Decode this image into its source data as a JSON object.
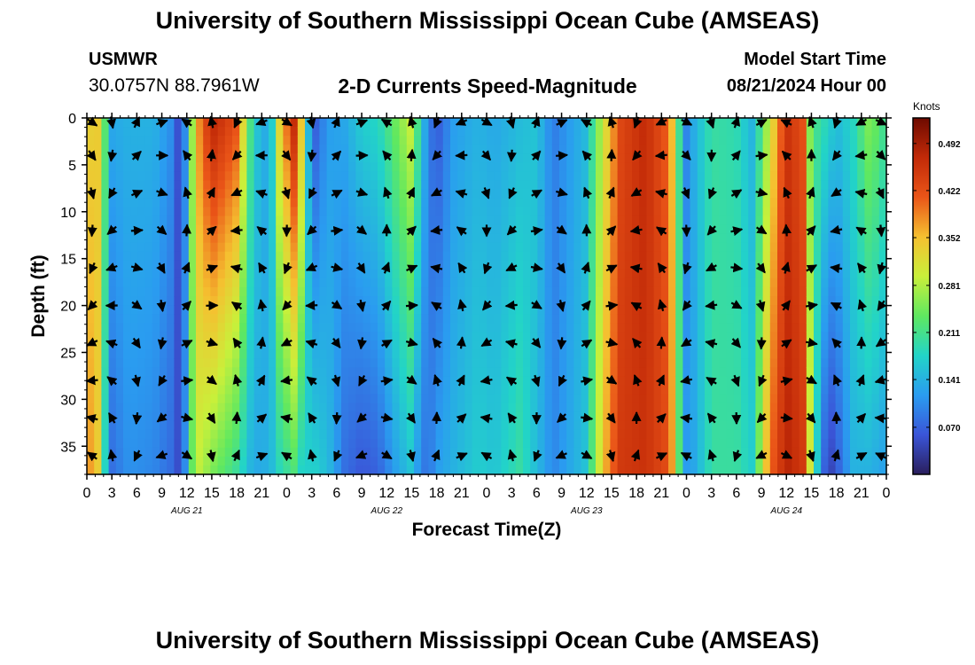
{
  "header": {
    "title": "University of Southern Mississippi Ocean Cube (AMSEAS)",
    "station": "USMWR",
    "latlon": "30.0757N  88.7961W",
    "subtitle": "2-D Currents Speed-Magnitude",
    "start_label": "Model Start Time",
    "start_value": "08/21/2024 Hour 00"
  },
  "footer": {
    "title": "University of Southern Mississippi Ocean Cube (AMSEAS)"
  },
  "chart_data": {
    "type": "heatmap",
    "title": "2-D Currents Speed-Magnitude",
    "xlabel": "Forecast Time(Z)",
    "ylabel": "Depth (ft)",
    "x_range_hours": [
      0,
      96
    ],
    "ylim": [
      0,
      38
    ],
    "y_ticks": [
      0,
      5,
      10,
      15,
      20,
      25,
      30,
      35
    ],
    "x_tick_labels": [
      "0",
      "3",
      "6",
      "9",
      "12",
      "15",
      "18",
      "21",
      "0",
      "3",
      "6",
      "9",
      "12",
      "15",
      "18",
      "21",
      "0",
      "3",
      "6",
      "9",
      "12",
      "15",
      "18",
      "21",
      "0",
      "3",
      "6",
      "9",
      "12",
      "15",
      "18",
      "21",
      "0"
    ],
    "date_labels": [
      {
        "hour": 12,
        "label": "AUG 21"
      },
      {
        "hour": 36,
        "label": "AUG 22"
      },
      {
        "hour": 60,
        "label": "AUG 23"
      },
      {
        "hour": 84,
        "label": "AUG 24"
      }
    ],
    "colorbar": {
      "units": "Knots",
      "min": 0.0,
      "max": 0.53,
      "ticks": [
        0.07,
        0.141,
        0.211,
        0.281,
        0.352,
        0.422,
        0.492
      ],
      "tick_labels": [
        "0.070",
        "0.141",
        "0.211",
        "0.281",
        "0.352",
        "0.422",
        "0.492"
      ],
      "colors": [
        "#2a1e5c",
        "#3a55d8",
        "#2a9cf0",
        "#22d4c8",
        "#5fe860",
        "#c9f03a",
        "#f5c030",
        "#ea5518",
        "#c22a08",
        "#6e0a00"
      ]
    },
    "vector_depths_ft": [
      0,
      4,
      8,
      12,
      16,
      20,
      24,
      28,
      32,
      36
    ],
    "speed_profile_knots": [
      {
        "hour": 0,
        "surface": 0.3,
        "bottom": 0.35
      },
      {
        "hour": 1,
        "surface": 0.38,
        "bottom": 0.4
      },
      {
        "hour": 2,
        "surface": 0.25,
        "bottom": 0.2
      },
      {
        "hour": 3,
        "surface": 0.13,
        "bottom": 0.08
      },
      {
        "hour": 5,
        "surface": 0.14,
        "bottom": 0.11
      },
      {
        "hour": 8,
        "surface": 0.14,
        "bottom": 0.1
      },
      {
        "hour": 10,
        "surface": 0.11,
        "bottom": 0.08
      },
      {
        "hour": 11,
        "surface": 0.05,
        "bottom": 0.05
      },
      {
        "hour": 12,
        "surface": 0.12,
        "bottom": 0.12
      },
      {
        "hour": 13,
        "surface": 0.35,
        "bottom": 0.3
      },
      {
        "hour": 15,
        "surface": 0.48,
        "bottom": 0.25
      },
      {
        "hour": 18,
        "surface": 0.42,
        "bottom": 0.2
      },
      {
        "hour": 20,
        "surface": 0.17,
        "bottom": 0.13
      },
      {
        "hour": 22,
        "surface": 0.12,
        "bottom": 0.14
      },
      {
        "hour": 23,
        "surface": 0.32,
        "bottom": 0.18
      },
      {
        "hour": 25,
        "surface": 0.48,
        "bottom": 0.22
      },
      {
        "hour": 26,
        "surface": 0.3,
        "bottom": 0.16
      },
      {
        "hour": 27,
        "surface": 0.05,
        "bottom": 0.18
      },
      {
        "hour": 29,
        "surface": 0.12,
        "bottom": 0.15
      },
      {
        "hour": 31,
        "surface": 0.13,
        "bottom": 0.08
      },
      {
        "hour": 33,
        "surface": 0.17,
        "bottom": 0.06
      },
      {
        "hour": 35,
        "surface": 0.18,
        "bottom": 0.07
      },
      {
        "hour": 37,
        "surface": 0.24,
        "bottom": 0.12
      },
      {
        "hour": 39,
        "surface": 0.3,
        "bottom": 0.16
      },
      {
        "hour": 40,
        "surface": 0.18,
        "bottom": 0.1
      },
      {
        "hour": 41,
        "surface": 0.1,
        "bottom": 0.08
      },
      {
        "hour": 42,
        "surface": 0.06,
        "bottom": 0.12
      },
      {
        "hour": 44,
        "surface": 0.12,
        "bottom": 0.14
      },
      {
        "hour": 47,
        "surface": 0.14,
        "bottom": 0.17
      },
      {
        "hour": 49,
        "surface": 0.13,
        "bottom": 0.16
      },
      {
        "hour": 52,
        "surface": 0.15,
        "bottom": 0.2
      },
      {
        "hour": 54,
        "surface": 0.16,
        "bottom": 0.15
      },
      {
        "hour": 56,
        "surface": 0.09,
        "bottom": 0.1
      },
      {
        "hour": 58,
        "surface": 0.12,
        "bottom": 0.13
      },
      {
        "hour": 60,
        "surface": 0.15,
        "bottom": 0.16
      },
      {
        "hour": 62,
        "surface": 0.3,
        "bottom": 0.35
      },
      {
        "hour": 64,
        "surface": 0.43,
        "bottom": 0.45
      },
      {
        "hour": 67,
        "surface": 0.47,
        "bottom": 0.46
      },
      {
        "hour": 70,
        "surface": 0.4,
        "bottom": 0.42
      },
      {
        "hour": 71,
        "surface": 0.22,
        "bottom": 0.24
      },
      {
        "hour": 72,
        "surface": 0.1,
        "bottom": 0.12
      },
      {
        "hour": 73,
        "surface": 0.14,
        "bottom": 0.13
      },
      {
        "hour": 75,
        "surface": 0.2,
        "bottom": 0.2
      },
      {
        "hour": 78,
        "surface": 0.19,
        "bottom": 0.2
      },
      {
        "hour": 80,
        "surface": 0.14,
        "bottom": 0.17
      },
      {
        "hour": 82,
        "surface": 0.3,
        "bottom": 0.4
      },
      {
        "hour": 84,
        "surface": 0.46,
        "bottom": 0.48
      },
      {
        "hour": 86,
        "surface": 0.42,
        "bottom": 0.45
      },
      {
        "hour": 87,
        "surface": 0.22,
        "bottom": 0.28
      },
      {
        "hour": 88,
        "surface": 0.2,
        "bottom": 0.12
      },
      {
        "hour": 89,
        "surface": 0.18,
        "bottom": 0.03
      },
      {
        "hour": 90,
        "surface": 0.15,
        "bottom": 0.06
      },
      {
        "hour": 92,
        "surface": 0.18,
        "bottom": 0.14
      },
      {
        "hour": 94,
        "surface": 0.26,
        "bottom": 0.14
      },
      {
        "hour": 96,
        "surface": 0.2,
        "bottom": 0.12
      }
    ]
  }
}
